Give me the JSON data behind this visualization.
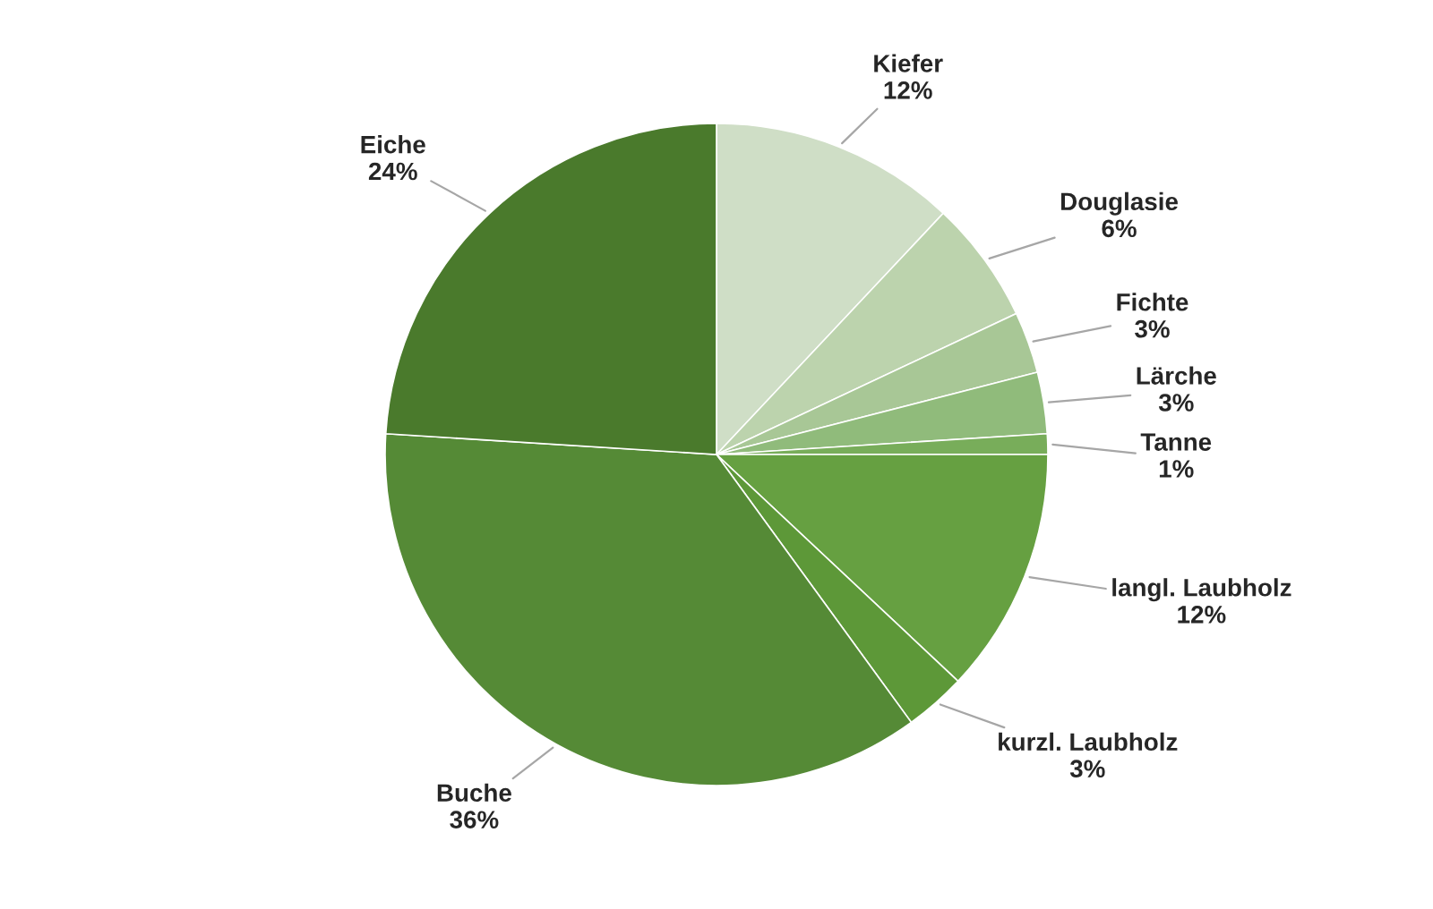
{
  "chart_data": {
    "type": "pie",
    "categories": [
      "Kiefer",
      "Douglasie",
      "Fichte",
      "Lärche",
      "Tanne",
      "langl. Laubholz",
      "kurzl. Laubholz",
      "Buche",
      "Eiche"
    ],
    "values": [
      12,
      6,
      3,
      3,
      1,
      12,
      3,
      36,
      24
    ],
    "value_labels": [
      "12%",
      "6%",
      "3%",
      "3%",
      "1%",
      "12%",
      "3%",
      "36%",
      "24%"
    ],
    "colors": [
      "#cfdec6",
      "#bcd3ad",
      "#a8c796",
      "#90bb7b",
      "#78ad5a",
      "#66a041",
      "#5d9838",
      "#558a36",
      "#4a7a2c"
    ]
  }
}
